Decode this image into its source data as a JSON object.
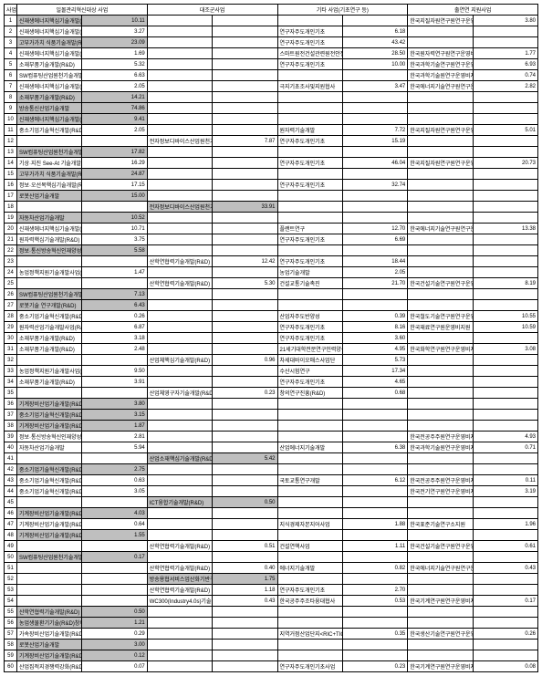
{
  "headers": {
    "idx": "사업",
    "group_a": "일몰관리혁신대상 사업",
    "group_b": "대조군사업",
    "group_c": "기타 사업(기초연구 등)",
    "group_d": "출연연 지원사업"
  },
  "rows": [
    {
      "idx": 1,
      "a": "신재생에너지핵심기술개발(R&D)",
      "av": "10.11",
      "aHL": true,
      "b": "",
      "bv": "",
      "c": "",
      "cv": "",
      "d": "한국지질자원연구원연구운영비지원",
      "dv": "3.80",
      "cHL": false
    },
    {
      "idx": 2,
      "a": "신재생에너지핵심기술개발(R&D)",
      "av": "3.27",
      "b": "",
      "bv": "",
      "c": "연구자주도개인기초",
      "cv": "6.18",
      "d": "",
      "dv": ""
    },
    {
      "idx": 3,
      "a": "고부가가치 식품기술개발(R&D)",
      "av": "23.09",
      "aHL": true,
      "b": "",
      "bv": "",
      "c": "연구자주도개인기초",
      "cv": "43.42",
      "d": "",
      "dv": ""
    },
    {
      "idx": 4,
      "a": "신재생에너지핵심기술개발(R&D)",
      "av": "1.69",
      "b": "",
      "bv": "",
      "c": "스마트원전건설관련원전안전검사연구",
      "cv": "28.50",
      "d": "한국원자력연구원연구운영비지원",
      "dv": "1.77"
    },
    {
      "idx": 5,
      "a": "소재부품기술개발(R&D)",
      "av": "5.32",
      "b": "",
      "bv": "",
      "c": "연구자주도개인기초",
      "cv": "10.00",
      "d": "한국과학기술연구원연구운영비지원",
      "dv": "6.93"
    },
    {
      "idx": 6,
      "a": "SW컴퓨팅산업원천기술개발(R&D)",
      "av": "6.63",
      "b": "",
      "bv": "",
      "c": "",
      "cv": "",
      "d": "한국과학기술원연구운영비지원",
      "dv": "0.74"
    },
    {
      "idx": 7,
      "a": "신재생에너지핵심기술개발(R&D)",
      "av": "2.05",
      "b": "",
      "bv": "",
      "c": "극지기초조사및지원협사",
      "cv": "3.47",
      "d": "한국에너지기술연구원연구운영비지원",
      "dv": "2.82"
    },
    {
      "idx": 8,
      "a": "소재부품기술개발(R&D)",
      "av": "14.21",
      "aHL": true,
      "b": "",
      "bv": "",
      "c": "",
      "cv": "",
      "d": "",
      "dv": ""
    },
    {
      "idx": 9,
      "a": "방송통신산업기술개발",
      "av": "74.86",
      "aHL": true,
      "b": "",
      "bv": "",
      "c": "",
      "cv": "",
      "d": "",
      "dv": ""
    },
    {
      "idx": 10,
      "a": "신재생에너지핵심기술개발(R&D)",
      "av": "9.41",
      "aHL": true,
      "b": "",
      "bv": "",
      "c": "",
      "cv": "",
      "d": "",
      "dv": ""
    },
    {
      "idx": 11,
      "a": "중소기업기술혁신개발(R&D)(소득)",
      "av": "2.05",
      "b": "",
      "bv": "",
      "c": "원자력기술개발",
      "cv": "7.72",
      "d": "한국지질자원연구원연구운영비지원",
      "dv": "5.01"
    },
    {
      "idx": 12,
      "a": "",
      "av": "",
      "b": "전자정보디바이스산업원천기술개발",
      "bv": "7.87",
      "c": "연구자주도개인기초",
      "cv": "15.19",
      "d": "",
      "dv": ""
    },
    {
      "idx": 13,
      "a": "SW컴퓨팅산업원천기술개발(R&D)",
      "av": "17.82",
      "aHL": true,
      "b": "",
      "bv": "",
      "c": "",
      "cv": "",
      "d": "",
      "dv": ""
    },
    {
      "idx": 14,
      "a": "기상·지진 See-At 기술개발연구(R&D)",
      "av": "16.29",
      "b": "",
      "bv": "",
      "c": "연구자주도개인기초",
      "cv": "46.04",
      "d": "한국지질자원연구원연구운영비지원",
      "dv": "20.73"
    },
    {
      "idx": 15,
      "a": "고부가가치 식품기술개발(R&D)",
      "av": "24.87",
      "aHL": true,
      "b": "",
      "bv": "",
      "c": "",
      "cv": "",
      "d": "",
      "dv": ""
    },
    {
      "idx": 16,
      "a": "정보·오선복핵심기술개발(R&D)",
      "av": "17.15",
      "b": "",
      "bv": "",
      "c": "연구자주도개인기초",
      "cv": "32.74",
      "d": "",
      "dv": ""
    },
    {
      "idx": 17,
      "a": "로봇산업기술개발",
      "av": "15.00",
      "aHL": true,
      "b": "",
      "bv": "",
      "c": "",
      "cv": "",
      "d": "",
      "dv": ""
    },
    {
      "idx": 18,
      "a": "",
      "av": "",
      "b": "전자정보디바이스산업원천기술개발",
      "bv": "33.91",
      "bHL": true,
      "c": "",
      "cv": "",
      "d": "",
      "dv": ""
    },
    {
      "idx": 19,
      "a": "자동차산업기술개발",
      "av": "10.52",
      "aHL": true,
      "b": "",
      "bv": "",
      "c": "",
      "cv": "",
      "d": "",
      "dv": ""
    },
    {
      "idx": 20,
      "a": "신재생에너지핵심기술개발(R&D)",
      "av": "10.71",
      "b": "",
      "bv": "",
      "c": "플랜트연구",
      "cv": "12.70",
      "d": "한국에너지기술연구원연구운영비지원",
      "dv": "13.38"
    },
    {
      "idx": 21,
      "a": "원자력핵심기술개발(R&D)",
      "av": "3.75",
      "b": "",
      "bv": "",
      "c": "연구자주도개인기초",
      "cv": "6.69",
      "d": "",
      "dv": ""
    },
    {
      "idx": 22,
      "a": "정보·통신방송혁신인재양성(R&D)",
      "av": "5.58",
      "aHL": true,
      "b": "",
      "bv": "",
      "c": "",
      "cv": "",
      "d": "",
      "dv": ""
    },
    {
      "idx": 23,
      "a": "",
      "av": "",
      "b": "산학연협력기술개발(R&D)",
      "bv": "12.42",
      "c": "연구자주도개인기초",
      "cv": "18.44",
      "d": "",
      "dv": ""
    },
    {
      "idx": 24,
      "a": "농업정책지원기술개발사업(R&D)",
      "av": "1.47",
      "b": "",
      "bv": "",
      "c": "농업기술개발",
      "cv": "2.05",
      "d": "",
      "dv": ""
    },
    {
      "idx": 25,
      "a": "",
      "av": "",
      "b": "산학연협력기술개발(R&D)",
      "bv": "5.30",
      "c": "건설교통기술촉진",
      "cv": "21.70",
      "d": "한국건설기술연구원연구운영비지원",
      "dv": "8.19"
    },
    {
      "idx": 26,
      "a": "SW컴퓨팅산업원천기술개발(R&D)",
      "av": "7.13",
      "aHL": true,
      "b": "",
      "bv": "",
      "c": "",
      "cv": "",
      "d": "",
      "dv": ""
    },
    {
      "idx": 27,
      "a": "로봇기술 연구개발(R&D)",
      "av": "6.43",
      "aHL": true,
      "b": "",
      "bv": "",
      "c": "",
      "cv": "",
      "d": "",
      "dv": ""
    },
    {
      "idx": 28,
      "a": "중소기업기술혁신개발(R&D)(소득)",
      "av": "0.26",
      "b": "",
      "bv": "",
      "c": "산업자주도반양성",
      "cv": "0.39",
      "d": "한국철도기술연구원연구운영비지원",
      "dv": "10.55"
    },
    {
      "idx": 29,
      "a": "원자력산업기술개발사업(R&D)",
      "av": "6.87",
      "b": "",
      "bv": "",
      "c": "연구자주도개인기초",
      "cv": "8.16",
      "d": "한국재료연구원운영비지원",
      "dv": "10.59"
    },
    {
      "idx": 30,
      "a": "소재부품기술개발(R&D)",
      "av": "3.18",
      "b": "",
      "bv": "",
      "c": "연구자주도개인기초",
      "cv": "3.60",
      "d": "",
      "dv": ""
    },
    {
      "idx": 31,
      "a": "소재부품기술개발(R&D)",
      "av": "2.48",
      "b": "",
      "bv": "",
      "c": "21세기대학전문연구인력양성지원",
      "cv": "4.95",
      "d": "한국화학연구원연구운영비지원",
      "dv": "3.08"
    },
    {
      "idx": 32,
      "a": "",
      "av": "",
      "b": "산업체핵심기술개발(R&D)",
      "bv": "0.96",
      "c": "차세대바이오매스사업단",
      "cv": "5.73",
      "d": "",
      "dv": ""
    },
    {
      "idx": 33,
      "a": "농업정책지원기술개발사업(R&D)",
      "av": "9.50",
      "b": "",
      "bv": "",
      "c": "수산시험연구",
      "cv": "17.34",
      "d": "",
      "dv": ""
    },
    {
      "idx": 34,
      "a": "소재부품기술개발(R&D)",
      "av": "3.91",
      "b": "",
      "bv": "",
      "c": "연구자주도개인기초",
      "cv": "4.65",
      "d": "",
      "dv": ""
    },
    {
      "idx": 35,
      "a": "",
      "av": "",
      "b": "산업체영구자기술개발(R&D)",
      "bv": "0.23",
      "c": "창의연구진흥(R&D)",
      "cv": "0.68",
      "d": "",
      "dv": ""
    },
    {
      "idx": 36,
      "a": "기계장비산업기술개발(R&D)",
      "av": "3.80",
      "aHL": true,
      "b": "",
      "bv": "",
      "c": "",
      "cv": "",
      "d": "",
      "dv": ""
    },
    {
      "idx": 37,
      "a": "중소기업기술혁신개발(R&D)(소득)",
      "av": "3.15",
      "aHL": true,
      "b": "",
      "bv": "",
      "c": "",
      "cv": "",
      "d": "",
      "dv": ""
    },
    {
      "idx": 38,
      "a": "기계장비산업기술개발(R&D)",
      "av": "1.87",
      "aHL": true,
      "b": "",
      "bv": "",
      "c": "",
      "cv": "",
      "d": "",
      "dv": ""
    },
    {
      "idx": 39,
      "a": "정보·통신방송혁신인재양성(R&D)",
      "av": "2.81",
      "b": "",
      "bv": "",
      "c": "",
      "cv": "",
      "d": "한국전공주주원연구운영비지원",
      "dv": "4.93"
    },
    {
      "idx": 40,
      "a": "자동차산업기술개발",
      "av": "5.94",
      "b": "",
      "bv": "",
      "c": "산업에너지기술개발",
      "cv": "6.38",
      "d": "한국과학기술원연구운영비지원",
      "dv": "0.71"
    },
    {
      "idx": 41,
      "a": "",
      "av": "",
      "b": "산업소재핵심기술개발(R&D)",
      "bv": "5.42",
      "bHL": true,
      "c": "",
      "cv": "",
      "d": "",
      "dv": ""
    },
    {
      "idx": 42,
      "a": "중소기업기술혁신개발(R&D)(소득)",
      "av": "2.75",
      "aHL": true,
      "b": "",
      "bv": "",
      "c": "",
      "cv": "",
      "d": "",
      "dv": ""
    },
    {
      "idx": 43,
      "a": "중소기업기술혁신개발(R&D)(소득)",
      "av": "0.63",
      "b": "",
      "bv": "",
      "c": "국토교통연구개발",
      "cv": "6.12",
      "d": "한국전공주주원연구운영비지원",
      "dv": "0.11"
    },
    {
      "idx": 44,
      "a": "중소기업기술혁신개발(R&D)(소득)",
      "av": "3.05",
      "b": "",
      "bv": "",
      "c": "",
      "cv": "",
      "d": "한국전기연구원연구운영비지원",
      "dv": "3.19"
    },
    {
      "idx": 45,
      "a": "",
      "av": "",
      "b": "ICT융합기술개발(R&D)",
      "bv": "0.50",
      "bHL": true,
      "c": "",
      "cv": "",
      "d": "",
      "dv": ""
    },
    {
      "idx": 46,
      "a": "기계장비산업기술개발(R&D)",
      "av": "4.03",
      "aHL": true,
      "b": "",
      "bv": "",
      "c": "",
      "cv": "",
      "d": "",
      "dv": ""
    },
    {
      "idx": 47,
      "a": "기계장비산업기술개발(R&D)",
      "av": "0.64",
      "b": "",
      "bv": "",
      "c": "지식경제자본지어사업",
      "cv": "1.88",
      "d": "한국표준기술연구소지원",
      "dv": "1.96"
    },
    {
      "idx": 48,
      "a": "기계장비산업기술개발(R&D)",
      "av": "1.55",
      "aHL": true,
      "b": "",
      "bv": "",
      "c": "",
      "cv": "",
      "d": "",
      "dv": ""
    },
    {
      "idx": 49,
      "a": "",
      "av": "",
      "b": "산학연협력기술개발(R&D)",
      "bv": "0.51",
      "c": "건설연핵사업",
      "cv": "1.11",
      "d": "한국건설기술연구원연구운영비지원",
      "dv": "0.61"
    },
    {
      "idx": 50,
      "a": "SW컴퓨팅산업원천기술개발(R&D)",
      "av": "0.17",
      "aHL": true,
      "b": "",
      "bv": "",
      "c": "",
      "cv": "",
      "d": "",
      "dv": ""
    },
    {
      "idx": 51,
      "a": "",
      "av": "",
      "b": "산학연협력기술개발(R&D)",
      "bv": "0.40",
      "c": "에너지기술개발",
      "cv": "0.82",
      "d": "한국에너지기술연구원연구운영비지원",
      "dv": "0.43"
    },
    {
      "idx": 52,
      "a": "",
      "av": "",
      "b": "방송용협서비스업산화기반구축",
      "bv": "1.75",
      "bHL": true,
      "c": "",
      "cv": "",
      "d": "",
      "dv": ""
    },
    {
      "idx": 53,
      "a": "",
      "av": "",
      "b": "산학연협력기술개발(R&D)",
      "bv": "1.18",
      "c": "연구자주도개인기초",
      "cv": "2.70",
      "d": "",
      "dv": ""
    },
    {
      "idx": 54,
      "a": "",
      "av": "",
      "b": "WC300(Industry4.0s)기술개발(R&D)",
      "bv": "0.43",
      "c": "한국공주주조타융대협사",
      "cv": "0.53",
      "d": "한국기계연구원연구운영비지원",
      "dv": "0.17"
    },
    {
      "idx": 55,
      "a": "산학연협력기술개발(R&D)",
      "av": "0.50",
      "aHL": true,
      "b": "",
      "bv": "",
      "c": "",
      "cv": "",
      "d": "",
      "dv": ""
    },
    {
      "idx": 56,
      "a": "농업생물환기기술(R&D)창의사업",
      "av": "1.21",
      "aHL": true,
      "b": "",
      "bv": "",
      "c": "",
      "cv": "",
      "d": "",
      "dv": ""
    },
    {
      "idx": 57,
      "a": "가속장비산업기술개발(R&D)",
      "av": "0.29",
      "b": "",
      "bv": "",
      "c": "지역거점산업단지<RIC+TIC+RRC>",
      "cv": "0.35",
      "d": "한국생산기술연구원연구운영비지원",
      "dv": "0.26"
    },
    {
      "idx": 58,
      "a": "로봇산업기술개발",
      "av": "3.00",
      "aHL": true,
      "b": "",
      "bv": "",
      "c": "",
      "cv": "",
      "d": "",
      "dv": ""
    },
    {
      "idx": 59,
      "a": "기계장비산업기술개발(R&D)",
      "av": "0.12",
      "aHL": true,
      "b": "",
      "bv": "",
      "c": "",
      "cv": "",
      "d": "",
      "dv": ""
    },
    {
      "idx": 60,
      "a": "산업집적지경쟁력강화(R&D)",
      "av": "0.07",
      "b": "",
      "bv": "",
      "c": "연구자주도개인기초사업",
      "cv": "0.23",
      "d": "한국기계연구원연구운영비지원",
      "dv": "0.08"
    }
  ]
}
